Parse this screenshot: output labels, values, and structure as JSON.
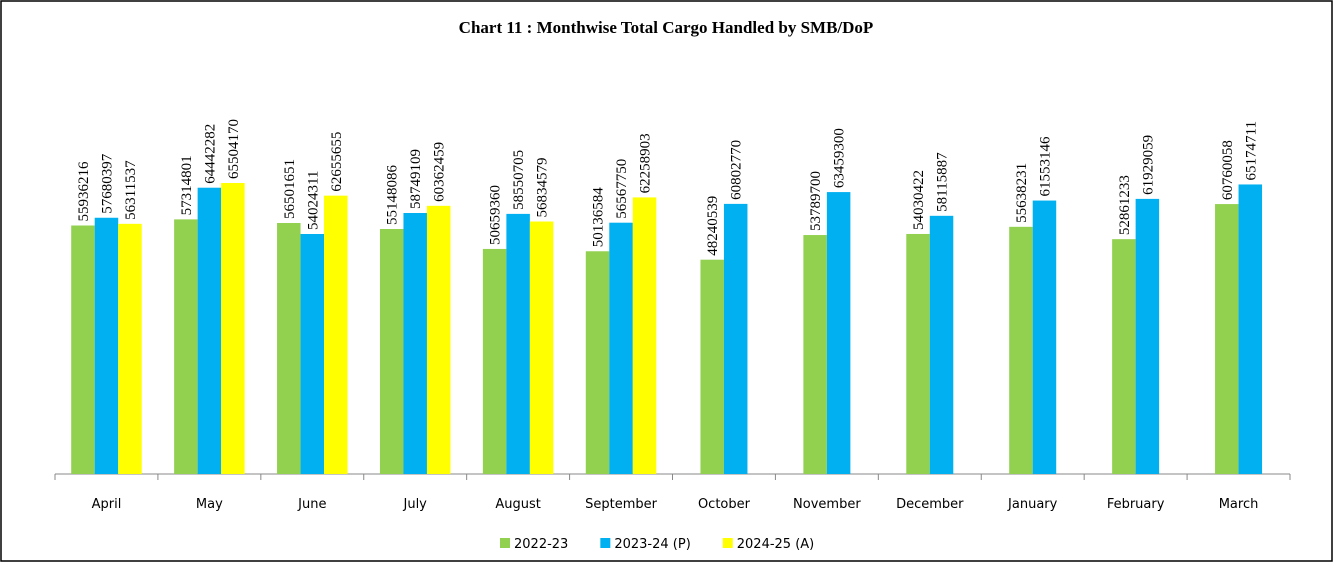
{
  "chart_data": {
    "type": "bar",
    "title": "Chart 11 : Monthwise Total Cargo Handled by SMB/DoP",
    "categories": [
      "April",
      "May",
      "June",
      "July",
      "August",
      "September",
      "October",
      "November",
      "December",
      "January",
      "February",
      "March"
    ],
    "series": [
      {
        "name": "2022-23",
        "color": "#92d050",
        "values": [
          55936216,
          57314801,
          56501651,
          55148086,
          50659360,
          50136584,
          48240539,
          53789700,
          54030422,
          55638231,
          52861233,
          60760058
        ]
      },
      {
        "name": "2023-24 (P)",
        "color": "#00b0f0",
        "values": [
          57680397,
          64442282,
          54024311,
          58749109,
          58550705,
          56567750,
          60802770,
          63459300,
          58115887,
          61553146,
          61929059,
          65174711
        ]
      },
      {
        "name": "2024-25 (A)",
        "color": "#ffff00",
        "values": [
          56311537,
          65504170,
          62655655,
          60362459,
          56834579,
          62258903,
          null,
          null,
          null,
          null,
          null,
          null
        ]
      }
    ],
    "legend": "bottom"
  }
}
